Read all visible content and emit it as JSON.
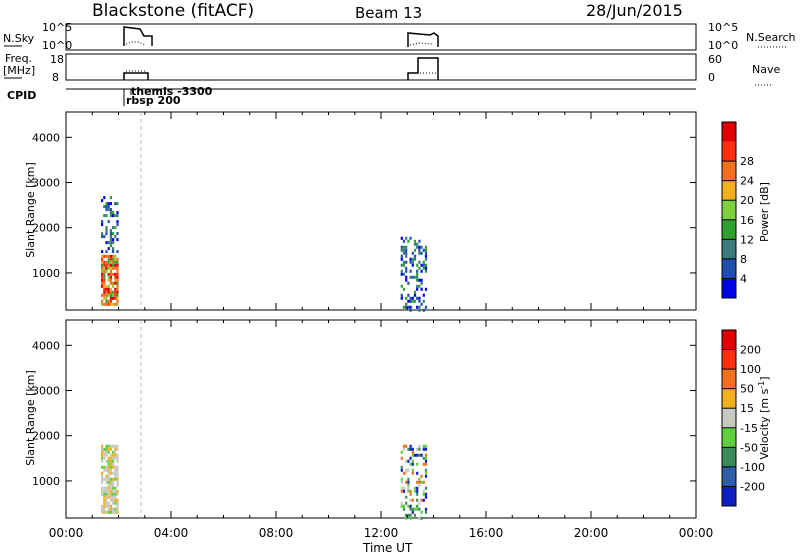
{
  "header": {
    "station": "Blackstone (fitACF)",
    "beam": "Beam 13",
    "date": "28/Jun/2015"
  },
  "status": {
    "nsky_label": "N.Sky",
    "nsky_ticks": [
      "10^5",
      "10^0"
    ],
    "nsearch_label": "N.Search",
    "freq_label": "Freq.",
    "freq_unit": "[MHz]",
    "freq_ticks": [
      "18",
      "8"
    ],
    "nave_ticks": [
      "60",
      "0"
    ],
    "nave_label": "Nave",
    "cpid_label": "CPID",
    "cpid_annotations": [
      "themis -3300",
      "rbsp 200"
    ]
  },
  "chart_data": [
    {
      "type": "heatmap",
      "title": "",
      "xlabel": "",
      "ylabel": "Slant Range [km]",
      "xlim": [
        "00:00",
        "24:00"
      ],
      "ylim": [
        180,
        4560
      ],
      "yticks": [
        "1000",
        "2000",
        "3000",
        "4000"
      ],
      "xticks": [
        "00:00",
        "04:00",
        "08:00",
        "12:00",
        "16:00",
        "20:00",
        "00:00"
      ],
      "colorbar": {
        "label": "Power [dB]",
        "ticks": [
          "4",
          "8",
          "12",
          "16",
          "20",
          "24",
          "28"
        ],
        "colors": [
          "#0000f0",
          "#1f4fa8",
          "#3a7a7a",
          "#2f9f2f",
          "#7fcf3f",
          "#f0b020",
          "#f07020",
          "#ff3010",
          "#e00000"
        ]
      },
      "events": [
        {
          "start": "01:20",
          "end": "02:00",
          "range_km": [
            300,
            1400
          ],
          "level": "high"
        },
        {
          "start": "01:20",
          "end": "02:00",
          "range_km": [
            1500,
            2700
          ],
          "level": "low"
        },
        {
          "start": "12:45",
          "end": "13:45",
          "range_km": [
            180,
            1800
          ],
          "level": "low"
        }
      ]
    },
    {
      "type": "heatmap",
      "title": "",
      "xlabel": "Time UT",
      "ylabel": "Slant Range [km]",
      "xlim": [
        "00:00",
        "24:00"
      ],
      "ylim": [
        180,
        4560
      ],
      "yticks": [
        "1000",
        "2000",
        "3000",
        "4000"
      ],
      "xticks": [
        "00:00",
        "04:00",
        "08:00",
        "12:00",
        "16:00",
        "20:00",
        "00:00"
      ],
      "colorbar": {
        "label": "Velocity [m s^-1]",
        "ticks": [
          "200",
          "100",
          "50",
          "15",
          "-15",
          "-50",
          "-100",
          "-200"
        ],
        "colors": [
          "#1020c0",
          "#2f5fa8",
          "#3a8a5a",
          "#5fcf3f",
          "#c8c8c0",
          "#f0b020",
          "#f07020",
          "#ff3010",
          "#e00000"
        ]
      },
      "events": [
        {
          "start": "01:20",
          "end": "02:00",
          "range_km": [
            300,
            1800
          ],
          "level": "ground"
        },
        {
          "start": "12:45",
          "end": "13:45",
          "range_km": [
            180,
            1800
          ],
          "level": "mixed"
        }
      ]
    }
  ]
}
